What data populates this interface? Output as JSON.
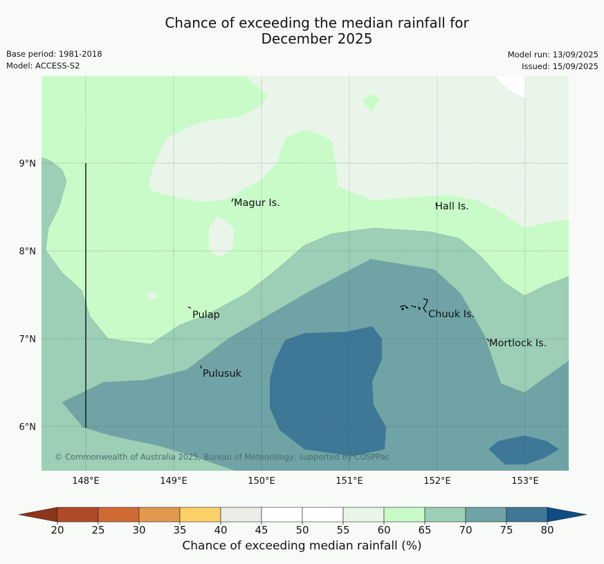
{
  "title_line1": "Chance of exceeding the median rainfall for",
  "title_line2": "December 2025",
  "meta": {
    "base_period": "Base period: 1981-2018",
    "model": "Model: ACCESS-S2",
    "model_run": "Model run: 13/09/2025",
    "issued": "Issued: 15/09/2025"
  },
  "map": {
    "lon_ticks": [
      "148°E",
      "149°E",
      "150°E",
      "151°E",
      "152°E",
      "153°E"
    ],
    "lat_ticks": [
      "9°N",
      "8°N",
      "7°N",
      "6°N"
    ],
    "places": [
      "Magur Is.",
      "Hall Is.",
      "Pulap",
      "Chuuk Is.",
      "Mortlock Is.",
      "Pulusuk"
    ],
    "copyright": "© Commonwealth of Australia 2025, Bureau of Meteorology, supported by COSPPac"
  },
  "colorbar": {
    "ticks": [
      "20",
      "25",
      "30",
      "35",
      "40",
      "45",
      "50",
      "55",
      "60",
      "65",
      "70",
      "75",
      "80"
    ],
    "colors": [
      "#b04a28",
      "#d06a35",
      "#e2994e",
      "#fdd06a",
      "#ecece6",
      "#ffffff",
      "#ffffff",
      "#eaf5ea",
      "#c9fbc9",
      "#9ccfb6",
      "#6fa3a6",
      "#3e7896"
    ],
    "low_extend_color": "#8c3519",
    "high_extend_color": "#0f4c84",
    "label": "Chance of exceeding median rainfall (%)"
  }
}
